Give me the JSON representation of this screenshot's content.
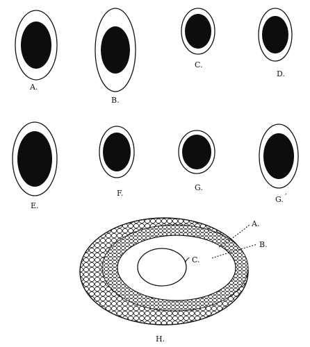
{
  "figures": [
    {
      "id": "A",
      "label": "A."
    },
    {
      "id": "B",
      "label": "B."
    },
    {
      "id": "C",
      "label": "C."
    },
    {
      "id": "D",
      "label": "D."
    },
    {
      "id": "E",
      "label": "E."
    },
    {
      "id": "F",
      "label": "F."
    },
    {
      "id": "G",
      "label": "G."
    },
    {
      "id": "G2",
      "label": "G."
    }
  ],
  "section": {
    "label": "H.",
    "callouts": [
      "A.",
      "B.",
      "C."
    ]
  }
}
